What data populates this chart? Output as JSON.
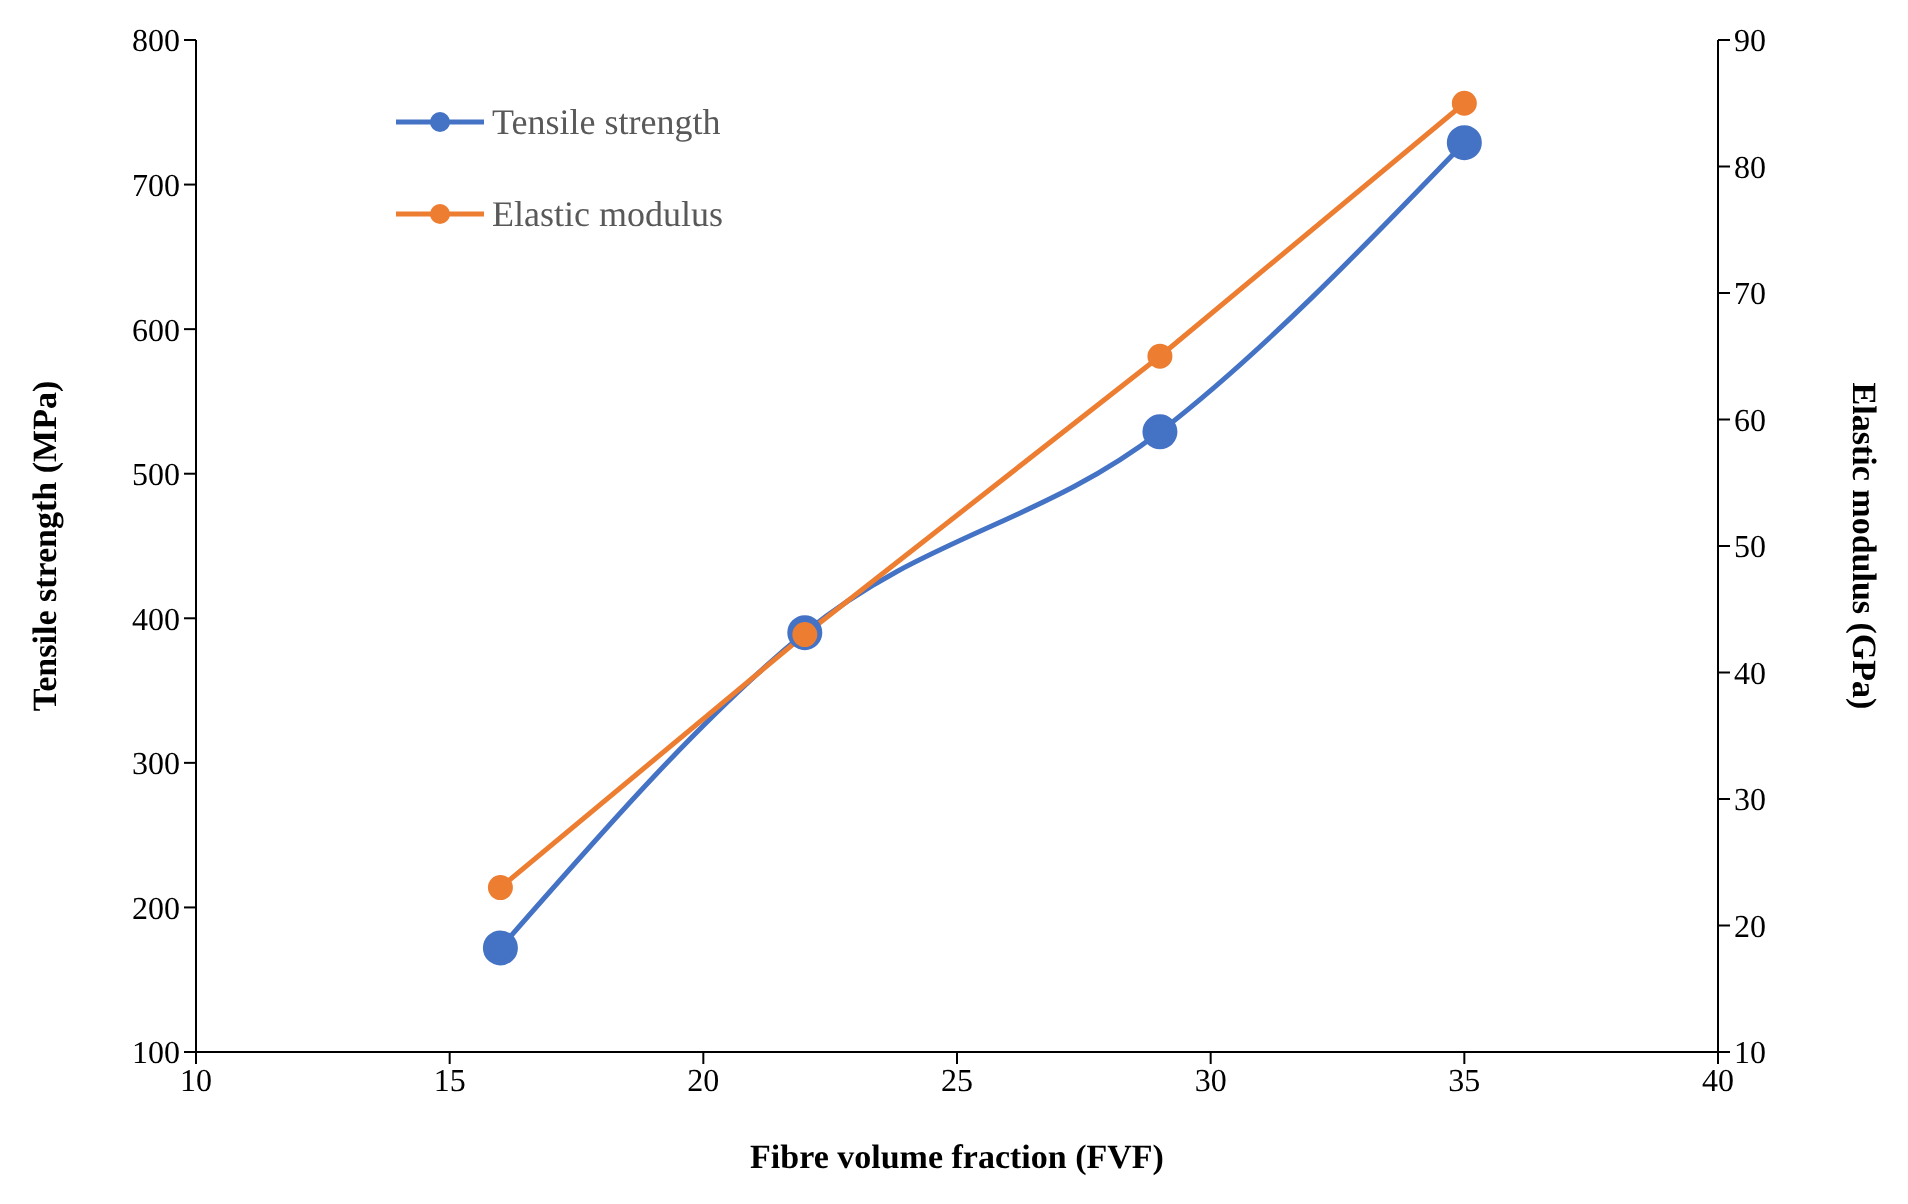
{
  "chart_data": {
    "type": "line",
    "xlabel": "Fibre volume fraction (FVF)",
    "ylabel": "Tensile strength (MPa)",
    "y2label": "Elastic modulus (GPa)",
    "x": [
      16,
      22,
      29,
      35
    ],
    "series": [
      {
        "name": "Tensile strength",
        "color": "#4472c4",
        "values": [
          172,
          390,
          529,
          729
        ]
      },
      {
        "name": "Elastic modulus",
        "color": "#ed7d31",
        "values": [
          23,
          43,
          65,
          85
        ],
        "axis": "y2"
      }
    ],
    "xlim": [
      10,
      40
    ],
    "xticks": [
      10,
      15,
      20,
      25,
      30,
      35,
      40
    ],
    "ylim": [
      100,
      800
    ],
    "yticks": [
      100,
      200,
      300,
      400,
      500,
      600,
      700,
      800
    ],
    "y2lim": [
      10,
      90
    ],
    "y2ticks": [
      10,
      20,
      30,
      40,
      50,
      60,
      70,
      80,
      90
    ],
    "grid": false,
    "legend": "top left",
    "marker": "circle",
    "line_style": "solid"
  }
}
